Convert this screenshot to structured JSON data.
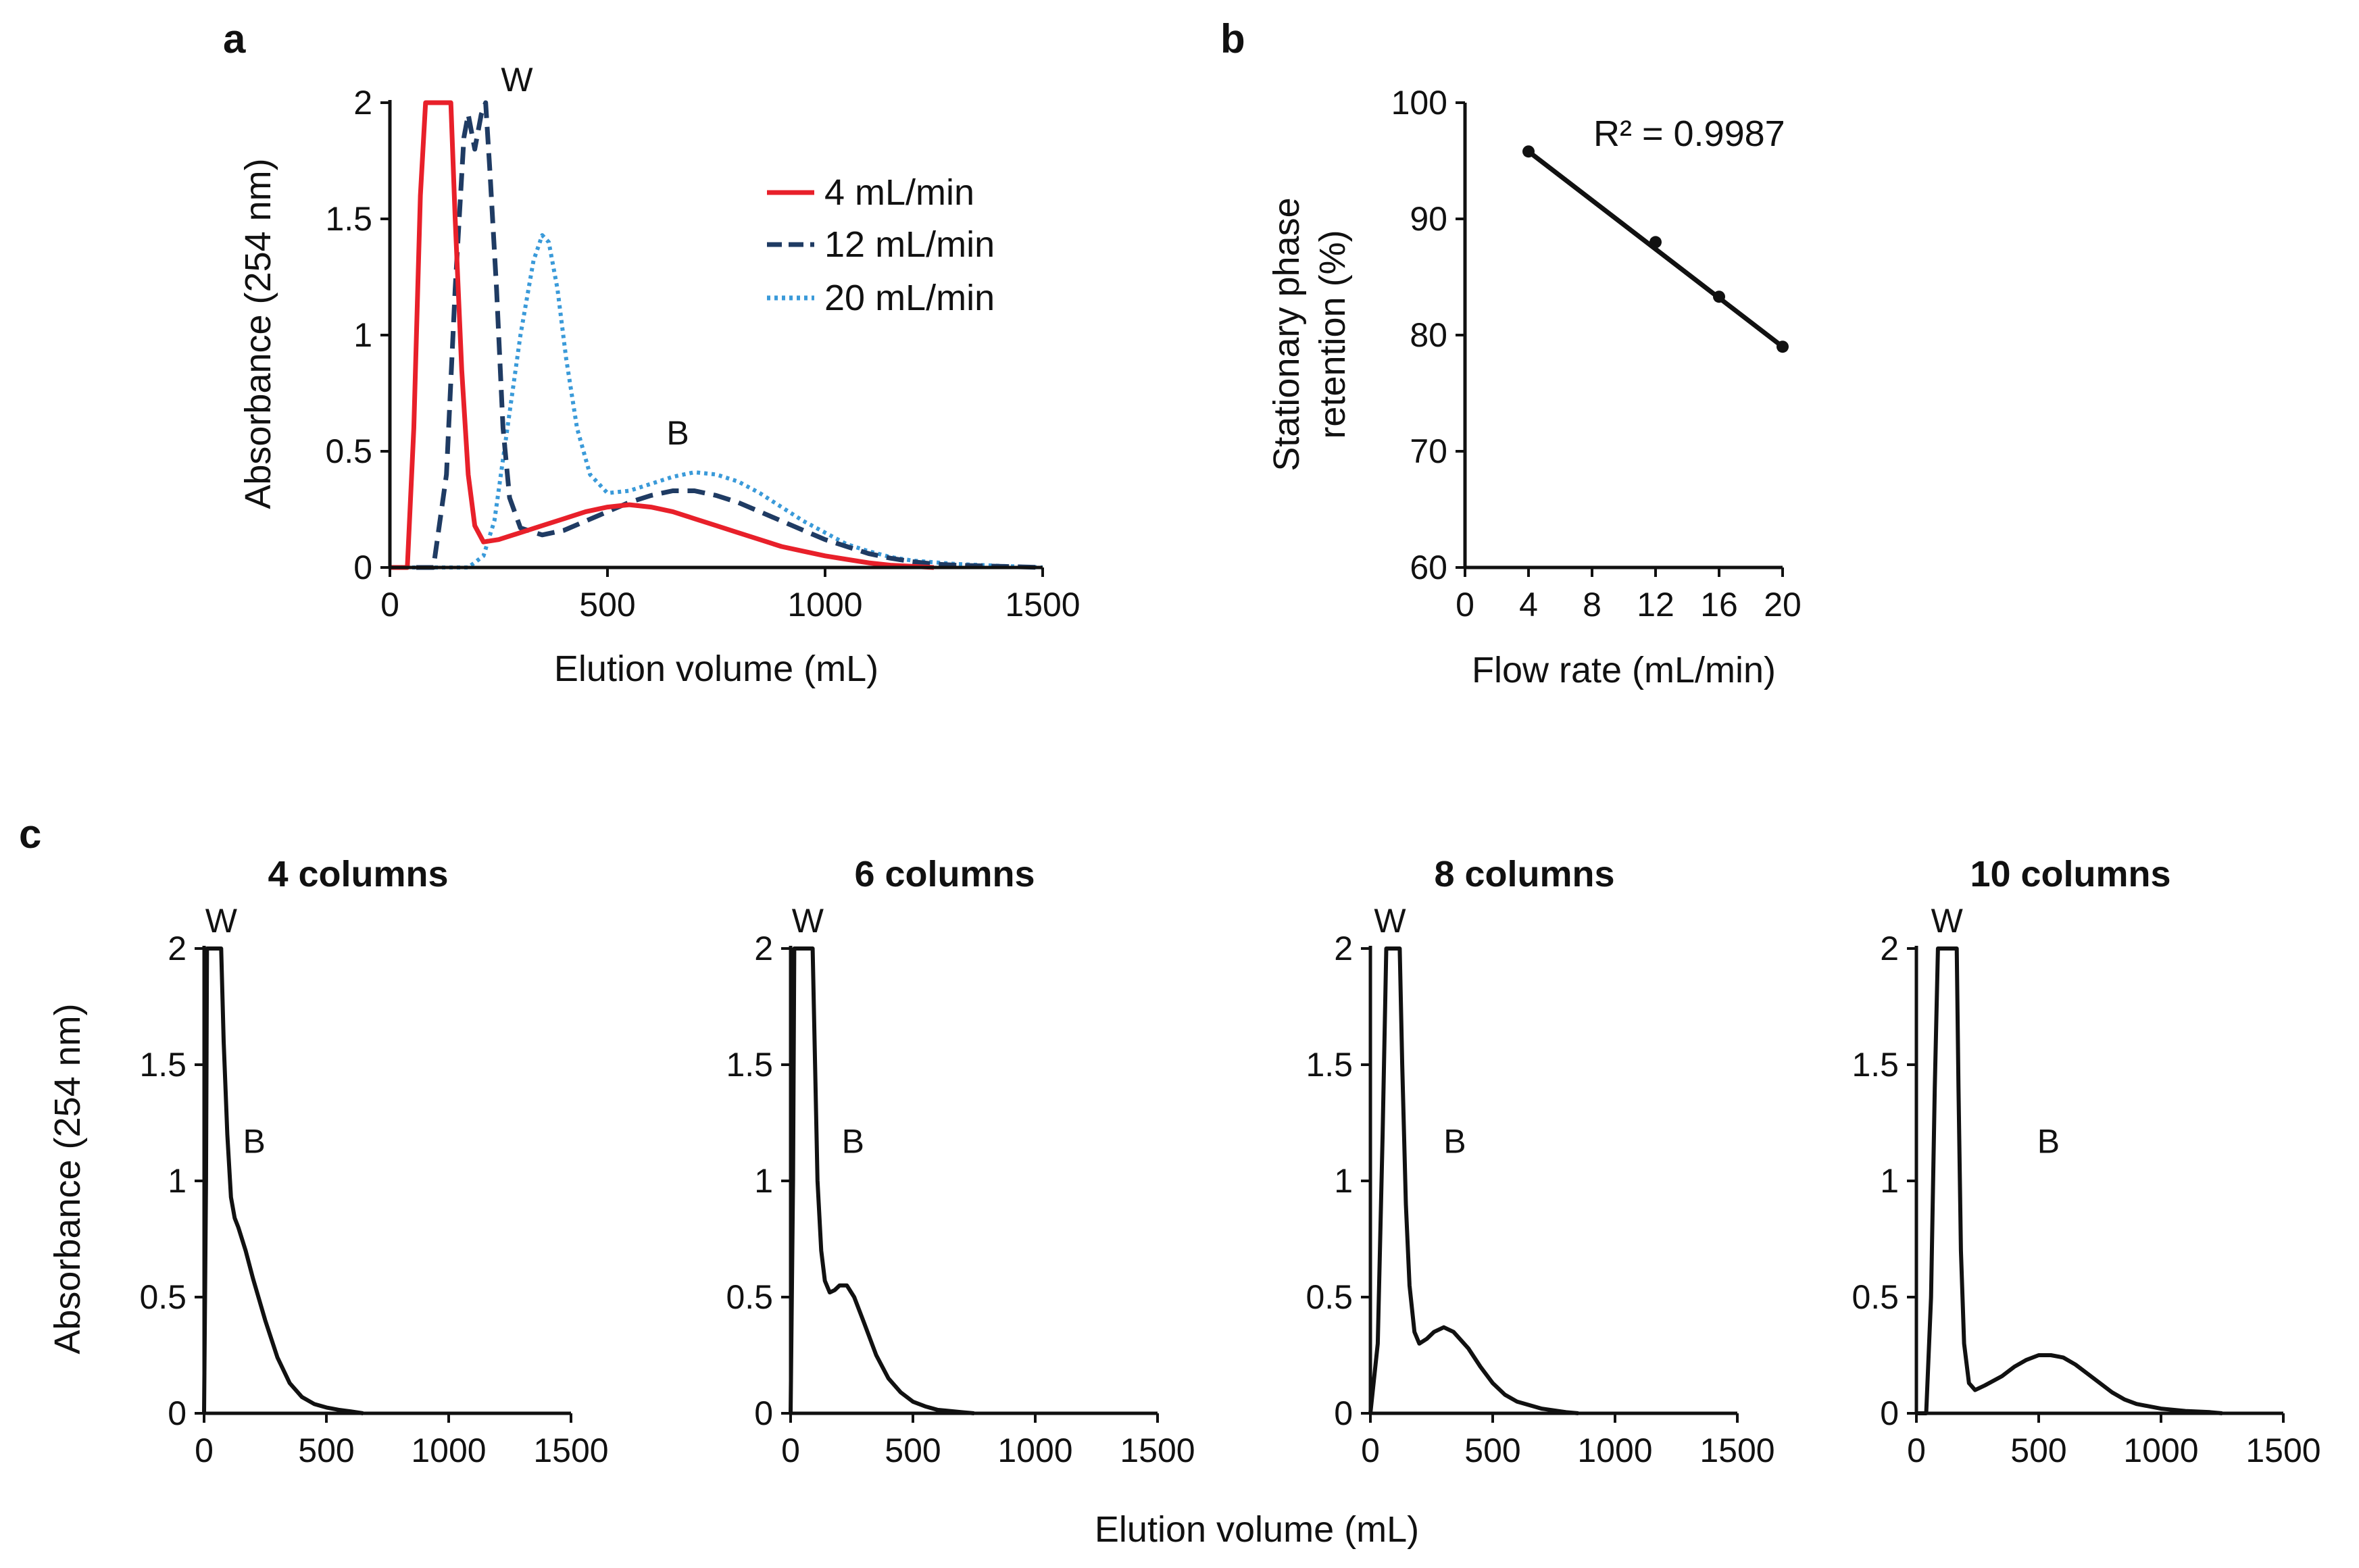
{
  "chart_data": [
    {
      "id": "a",
      "panel_label": "a",
      "type": "line",
      "xlabel": "Elution volume (mL)",
      "ylabel": "Absorbance (254 nm)",
      "xlim": [
        0,
        1500
      ],
      "ylim": [
        0,
        2
      ],
      "xticks": [
        0,
        500,
        1000,
        1500
      ],
      "yticks": [
        0,
        0.5,
        1,
        1.5,
        2
      ],
      "ytick_labels": [
        "0",
        "0.5",
        "1",
        "1.5",
        "2"
      ],
      "legend_position": "top-right",
      "annotations": [
        {
          "text": "W",
          "x": 290,
          "y": 2.03
        },
        {
          "text": "B",
          "x": 650,
          "y": 0.56
        }
      ],
      "series": [
        {
          "name": "4 mL/min",
          "color": "#e8202a",
          "style": "solid",
          "points": [
            [
              0,
              0
            ],
            [
              40,
              0
            ],
            [
              55,
              0.6
            ],
            [
              70,
              1.6
            ],
            [
              82,
              2
            ],
            [
              140,
              2
            ],
            [
              150,
              1.5
            ],
            [
              165,
              0.85
            ],
            [
              180,
              0.4
            ],
            [
              195,
              0.18
            ],
            [
              215,
              0.11
            ],
            [
              250,
              0.12
            ],
            [
              300,
              0.15
            ],
            [
              350,
              0.18
            ],
            [
              400,
              0.21
            ],
            [
              450,
              0.24
            ],
            [
              500,
              0.26
            ],
            [
              550,
              0.27
            ],
            [
              600,
              0.26
            ],
            [
              650,
              0.24
            ],
            [
              700,
              0.21
            ],
            [
              750,
              0.18
            ],
            [
              800,
              0.15
            ],
            [
              850,
              0.12
            ],
            [
              900,
              0.09
            ],
            [
              950,
              0.07
            ],
            [
              1000,
              0.05
            ],
            [
              1050,
              0.035
            ],
            [
              1100,
              0.02
            ],
            [
              1150,
              0.01
            ],
            [
              1200,
              0.005
            ],
            [
              1250,
              0
            ]
          ]
        },
        {
          "name": "12 mL/min",
          "color": "#1f3b63",
          "style": "dashed",
          "points": [
            [
              0,
              0
            ],
            [
              100,
              0
            ],
            [
              130,
              0.4
            ],
            [
              150,
              1.2
            ],
            [
              170,
              1.85
            ],
            [
              180,
              1.95
            ],
            [
              195,
              1.8
            ],
            [
              210,
              1.95
            ],
            [
              220,
              2
            ],
            [
              230,
              1.7
            ],
            [
              245,
              1.2
            ],
            [
              260,
              0.6
            ],
            [
              275,
              0.3
            ],
            [
              300,
              0.17
            ],
            [
              350,
              0.14
            ],
            [
              400,
              0.16
            ],
            [
              450,
              0.2
            ],
            [
              500,
              0.24
            ],
            [
              550,
              0.28
            ],
            [
              600,
              0.31
            ],
            [
              650,
              0.33
            ],
            [
              700,
              0.33
            ],
            [
              750,
              0.31
            ],
            [
              800,
              0.28
            ],
            [
              850,
              0.24
            ],
            [
              900,
              0.2
            ],
            [
              950,
              0.16
            ],
            [
              1000,
              0.12
            ],
            [
              1050,
              0.09
            ],
            [
              1100,
              0.06
            ],
            [
              1150,
              0.04
            ],
            [
              1200,
              0.025
            ],
            [
              1250,
              0.015
            ],
            [
              1300,
              0.01
            ],
            [
              1400,
              0.005
            ],
            [
              1500,
              0
            ]
          ]
        },
        {
          "name": "20 mL/min",
          "color": "#3a9ad9",
          "style": "dotted",
          "points": [
            [
              0,
              0
            ],
            [
              180,
              0
            ],
            [
              215,
              0.05
            ],
            [
              240,
              0.2
            ],
            [
              270,
              0.6
            ],
            [
              300,
              1.0
            ],
            [
              330,
              1.32
            ],
            [
              350,
              1.43
            ],
            [
              365,
              1.4
            ],
            [
              385,
              1.2
            ],
            [
              405,
              0.9
            ],
            [
              430,
              0.6
            ],
            [
              460,
              0.4
            ],
            [
              500,
              0.32
            ],
            [
              550,
              0.33
            ],
            [
              600,
              0.36
            ],
            [
              650,
              0.39
            ],
            [
              700,
              0.41
            ],
            [
              750,
              0.4
            ],
            [
              800,
              0.37
            ],
            [
              850,
              0.32
            ],
            [
              900,
              0.26
            ],
            [
              950,
              0.2
            ],
            [
              1000,
              0.15
            ],
            [
              1050,
              0.1
            ],
            [
              1100,
              0.07
            ],
            [
              1150,
              0.045
            ],
            [
              1200,
              0.03
            ],
            [
              1300,
              0.015
            ],
            [
              1400,
              0.007
            ],
            [
              1500,
              0
            ]
          ]
        }
      ]
    },
    {
      "id": "b",
      "panel_label": "b",
      "type": "scatter",
      "xlabel": "Flow rate (mL/min)",
      "ylabel_lines": [
        "Stationary phase",
        "retention (%)"
      ],
      "xlim": [
        0,
        20
      ],
      "ylim": [
        60,
        100
      ],
      "xticks": [
        0,
        4,
        8,
        12,
        16,
        20
      ],
      "yticks": [
        60,
        70,
        80,
        90,
        100
      ],
      "annotation": "R² = 0.9987",
      "points": [
        [
          4,
          95.8
        ],
        [
          12,
          88.0
        ],
        [
          16,
          83.3
        ],
        [
          20,
          79.0
        ]
      ],
      "trendline": [
        [
          4,
          95.8
        ],
        [
          20,
          79.0
        ]
      ]
    },
    {
      "id": "c",
      "panel_label": "c",
      "type": "line",
      "shared_xlabel": "Elution volume (mL)",
      "shared_ylabel": "Absorbance (254 nm)",
      "xlim": [
        0,
        1500
      ],
      "ylim": [
        0,
        2
      ],
      "xticks": [
        0,
        500,
        1000,
        1500
      ],
      "yticks": [
        0,
        0.5,
        1,
        1.5,
        2
      ],
      "ytick_labels": [
        "0",
        "0.5",
        "1",
        "1.5",
        "2"
      ],
      "color": "#111111",
      "subplots": [
        {
          "title": "4 columns",
          "labels": [
            {
              "text": "W",
              "x": 70,
              "y": 2.07
            },
            {
              "text": "B",
              "x": 205,
              "y": 1.12
            }
          ],
          "points": [
            [
              0,
              0
            ],
            [
              8,
              1.0
            ],
            [
              12,
              2
            ],
            [
              70,
              2
            ],
            [
              80,
              1.6
            ],
            [
              95,
              1.2
            ],
            [
              110,
              0.93
            ],
            [
              125,
              0.84
            ],
            [
              140,
              0.8
            ],
            [
              170,
              0.7
            ],
            [
              200,
              0.58
            ],
            [
              250,
              0.4
            ],
            [
              300,
              0.24
            ],
            [
              350,
              0.13
            ],
            [
              400,
              0.07
            ],
            [
              450,
              0.04
            ],
            [
              500,
              0.025
            ],
            [
              550,
              0.015
            ],
            [
              600,
              0.008
            ],
            [
              650,
              0
            ]
          ]
        },
        {
          "title": "6 columns",
          "labels": [
            {
              "text": "W",
              "x": 70,
              "y": 2.07
            },
            {
              "text": "B",
              "x": 255,
              "y": 1.12
            }
          ],
          "points": [
            [
              0,
              0
            ],
            [
              10,
              1.0
            ],
            [
              15,
              2
            ],
            [
              90,
              2
            ],
            [
              100,
              1.5
            ],
            [
              110,
              1.0
            ],
            [
              125,
              0.7
            ],
            [
              140,
              0.57
            ],
            [
              160,
              0.52
            ],
            [
              180,
              0.53
            ],
            [
              200,
              0.55
            ],
            [
              230,
              0.55
            ],
            [
              260,
              0.5
            ],
            [
              300,
              0.39
            ],
            [
              350,
              0.25
            ],
            [
              400,
              0.15
            ],
            [
              450,
              0.09
            ],
            [
              500,
              0.05
            ],
            [
              550,
              0.03
            ],
            [
              600,
              0.015
            ],
            [
              700,
              0.005
            ],
            [
              750,
              0
            ]
          ]
        },
        {
          "title": "8 columns",
          "labels": [
            {
              "text": "W",
              "x": 80,
              "y": 2.07
            },
            {
              "text": "B",
              "x": 345,
              "y": 1.12
            }
          ],
          "points": [
            [
              0,
              0
            ],
            [
              30,
              0.3
            ],
            [
              50,
              1.2
            ],
            [
              65,
              2
            ],
            [
              120,
              2
            ],
            [
              130,
              1.5
            ],
            [
              145,
              0.9
            ],
            [
              160,
              0.55
            ],
            [
              180,
              0.35
            ],
            [
              200,
              0.3
            ],
            [
              230,
              0.32
            ],
            [
              260,
              0.35
            ],
            [
              300,
              0.37
            ],
            [
              340,
              0.35
            ],
            [
              400,
              0.28
            ],
            [
              450,
              0.2
            ],
            [
              500,
              0.13
            ],
            [
              550,
              0.08
            ],
            [
              600,
              0.05
            ],
            [
              700,
              0.02
            ],
            [
              800,
              0.005
            ],
            [
              850,
              0
            ]
          ]
        },
        {
          "title": "10 columns",
          "labels": [
            {
              "text": "W",
              "x": 125,
              "y": 2.07
            },
            {
              "text": "B",
              "x": 540,
              "y": 1.12
            }
          ],
          "points": [
            [
              0,
              0
            ],
            [
              40,
              0
            ],
            [
              60,
              0.5
            ],
            [
              75,
              1.4
            ],
            [
              88,
              2
            ],
            [
              165,
              2
            ],
            [
              172,
              1.4
            ],
            [
              182,
              0.7
            ],
            [
              195,
              0.3
            ],
            [
              215,
              0.13
            ],
            [
              240,
              0.1
            ],
            [
              280,
              0.12
            ],
            [
              350,
              0.16
            ],
            [
              400,
              0.2
            ],
            [
              450,
              0.23
            ],
            [
              500,
              0.25
            ],
            [
              550,
              0.25
            ],
            [
              600,
              0.24
            ],
            [
              650,
              0.21
            ],
            [
              700,
              0.17
            ],
            [
              750,
              0.13
            ],
            [
              800,
              0.09
            ],
            [
              850,
              0.06
            ],
            [
              900,
              0.04
            ],
            [
              1000,
              0.02
            ],
            [
              1100,
              0.01
            ],
            [
              1200,
              0.005
            ],
            [
              1250,
              0
            ]
          ]
        }
      ]
    }
  ]
}
